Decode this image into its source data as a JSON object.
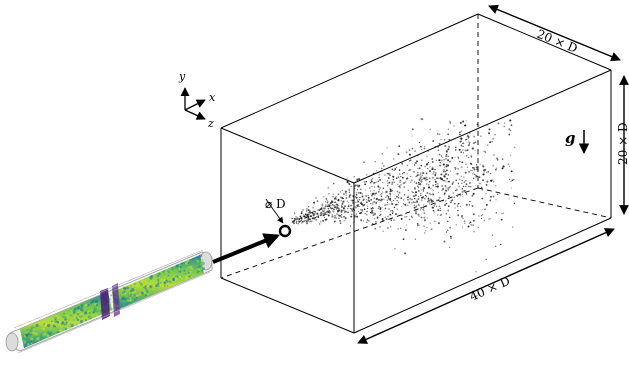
{
  "labels": {
    "depth": "20 × D",
    "height": "20 × D",
    "length": "40 × D",
    "diameter": "⌀ D",
    "gravity": "g"
  },
  "axes": {
    "y": "y",
    "x": "x",
    "z": "z"
  },
  "icons": {
    "inflow_arrow": "arrow-right-icon",
    "gravity_arrow": "arrow-down-icon",
    "nozzle": "circle-icon"
  },
  "colors": {
    "pipe_fill": "#8fcf4a",
    "pipe_mid": "#3fae6a",
    "pipe_edge": "#2b7fa0",
    "pipe_section": "#4b1c7a",
    "particles": "#1a1a1a",
    "box_line": "#000000"
  }
}
